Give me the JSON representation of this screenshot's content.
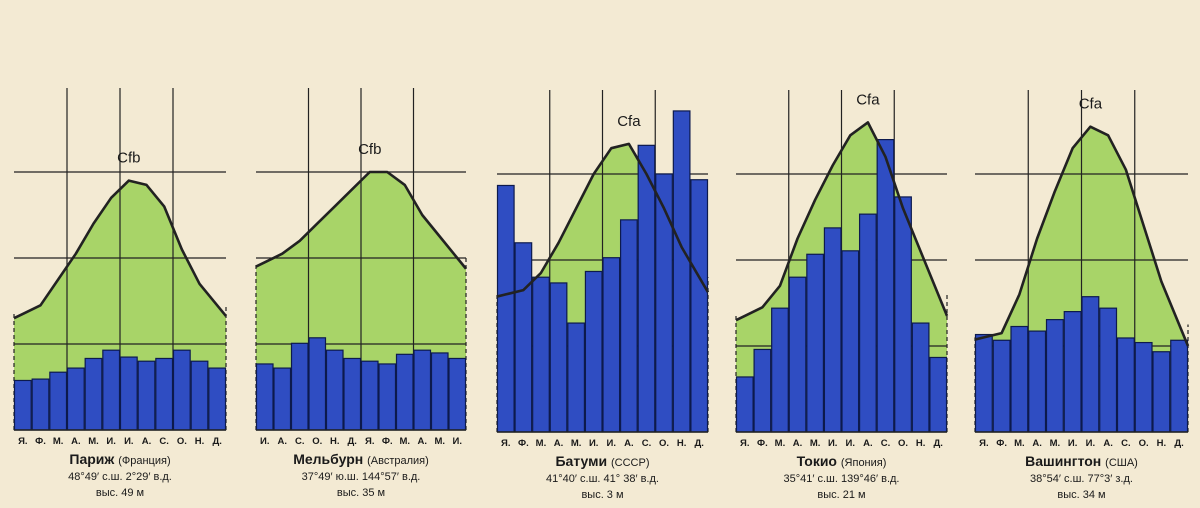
{
  "chart_data": [
    {
      "type": "bar",
      "title": "Cfb",
      "categories": [
        "Я.",
        "Ф.",
        "М.",
        "А.",
        "М.",
        "И.",
        "И.",
        "А.",
        "С.",
        "О.",
        "Н.",
        "Д."
      ],
      "series": [
        {
          "type": "bar",
          "values": [
            36,
            37,
            42,
            45,
            52,
            58,
            53,
            50,
            52,
            58,
            50,
            45
          ]
        },
        {
          "type": "area",
          "values": [
            3.5,
            4.5,
            7.5,
            10.5,
            14,
            17,
            19,
            18.5,
            16,
            11,
            7,
            4.5
          ]
        }
      ],
      "ylim": [
        0,
        250
      ],
      "temp_lim": [
        -10,
        30
      ],
      "station": "Париж",
      "country": "(Франция)",
      "coords": "48°49′ с.ш. 2°29′ в.д.",
      "elevation": "выс. 49 м"
    },
    {
      "type": "bar",
      "title": "Cfb",
      "categories": [
        "И.",
        "А.",
        "С.",
        "О.",
        "Н.",
        "Д.",
        "Я.",
        "Ф.",
        "М.",
        "А.",
        "М.",
        "И."
      ],
      "series": [
        {
          "type": "bar",
          "values": [
            48,
            45,
            63,
            67,
            58,
            52,
            50,
            48,
            55,
            58,
            56,
            52
          ]
        },
        {
          "type": "area",
          "values": [
            9.5,
            10.5,
            12,
            14,
            16,
            18,
            20,
            20,
            18.5,
            15,
            12.5,
            10
          ]
        }
      ],
      "ylim": [
        0,
        250
      ],
      "temp_lim": [
        -10,
        30
      ],
      "station": "Мельбурн",
      "country": "(Австралия)",
      "coords": "37°49′ ю.ш. 144°57′ в.д.",
      "elevation": "выс. 35 м"
    },
    {
      "type": "bar",
      "title": "Cfa",
      "categories": [
        "Я.",
        "Ф.",
        "М.",
        "А.",
        "М.",
        "И.",
        "И.",
        "А.",
        "С.",
        "О.",
        "Н.",
        "Д."
      ],
      "series": [
        {
          "type": "bar",
          "values": [
            215,
            165,
            135,
            130,
            95,
            140,
            152,
            185,
            250,
            225,
            280,
            220
          ]
        },
        {
          "type": "area",
          "values": [
            6,
            6.5,
            8.5,
            12,
            16,
            20,
            23,
            23.5,
            20,
            16,
            11.5,
            8
          ]
        }
      ],
      "ylim": [
        0,
        300
      ],
      "temp_lim": [
        -10,
        30
      ],
      "station": "Батуми",
      "country": "(СССР)",
      "coords": "41°40′ с.ш. 41° 38′ в.д.",
      "elevation": "выс. 3 м"
    },
    {
      "type": "bar",
      "title": "Cfa",
      "categories": [
        "Я.",
        "Ф.",
        "М.",
        "А.",
        "М.",
        "И.",
        "И.",
        "А.",
        "С.",
        "О.",
        "Н.",
        "Д."
      ],
      "series": [
        {
          "type": "bar",
          "values": [
            48,
            72,
            108,
            135,
            155,
            178,
            158,
            190,
            255,
            205,
            95,
            65
          ]
        },
        {
          "type": "area",
          "values": [
            3.5,
            4.5,
            7,
            12.5,
            17,
            21,
            24.5,
            26,
            22,
            16,
            11,
            6
          ]
        }
      ],
      "ylim": [
        0,
        300
      ],
      "temp_lim": [
        -10,
        30
      ],
      "station": "Токио",
      "country": "(Япония)",
      "coords": "35°41′ с.ш. 139°46′ в.д.",
      "elevation": "выс. 21 м"
    },
    {
      "type": "bar",
      "title": "Cfa",
      "categories": [
        "Я.",
        "Ф.",
        "М.",
        "А.",
        "М.",
        "И.",
        "И.",
        "А.",
        "С.",
        "О.",
        "Н.",
        "Д."
      ],
      "series": [
        {
          "type": "bar",
          "values": [
            85,
            80,
            92,
            88,
            98,
            105,
            118,
            108,
            82,
            78,
            70,
            80
          ]
        },
        {
          "type": "area",
          "values": [
            1,
            1.5,
            6,
            12.5,
            18,
            23,
            25.5,
            24.5,
            20.5,
            14,
            7.5,
            2.5
          ]
        }
      ],
      "ylim": [
        0,
        300
      ],
      "temp_lim": [
        -10,
        30
      ],
      "station": "Вашингтон",
      "country": "(США)",
      "coords": "38°54′ с.ш. 77°3′ з.д.",
      "elevation": "выс. 34 м"
    }
  ],
  "colors": {
    "background": "#f3ead3",
    "precipitation_bars": "#2f4dc2",
    "temperature_fill": "#a8d468",
    "outline": "#222222",
    "text": "#1a1a1a"
  }
}
